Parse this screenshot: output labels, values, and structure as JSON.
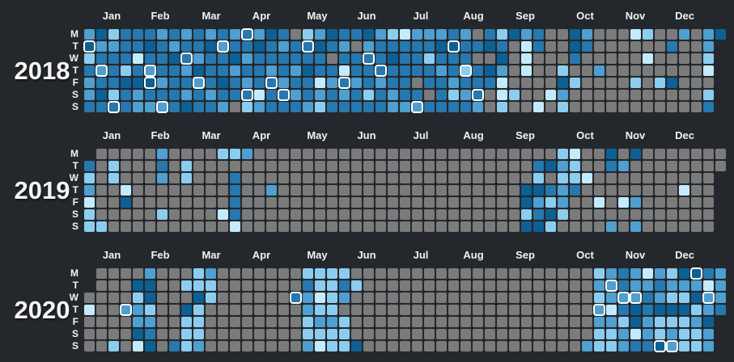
{
  "chart_data": {
    "type": "heatmap",
    "description": "Three-year calendar activity heatmap (weeks as columns, weekdays as rows). Levels: 0 = gray / no activity, 1 = lightest blue, 5 = darkest blue, '-' = day not in year.",
    "row_labels": [
      "M",
      "T",
      "W",
      "T",
      "F",
      "S",
      "S"
    ],
    "month_labels": [
      "Jan",
      "Feb",
      "Mar",
      "Apr",
      "May",
      "Jun",
      "Jul",
      "Aug",
      "Sep",
      "Oct",
      "Nov",
      "Dec"
    ],
    "colors": {
      "background": "#24282c",
      "highlight_ring": "#ffffff",
      "levels": {
        "0": "#7b7b7b",
        "1": "#c3ebfc",
        "2": "#8ccdef",
        "3": "#4f9fd0",
        "4": "#2678ae",
        "5": "#0d6094"
      }
    },
    "years": [
      {
        "label": "2018",
        "weeks": [
          "3524334",
          "5343454",
          "2344424",
          "4442544",
          "4414533",
          "4543543",
          "3444343",
          "4354444",
          "3443435",
          "4435344",
          "3544434",
          "4344543",
          "3453440",
          "4434342",
          "3544413",
          "5443444",
          "4344344",
          "0443434",
          "2445443",
          "3544132",
          "5404344",
          "4341434",
          "4044344",
          "5344424",
          "3444344",
          "2454433",
          "1444443",
          "3444043",
          "3424404",
          "3543444",
          "4544324",
          "3442434",
          "0404443",
          "4505400",
          "2453112",
          "5000020",
          "3111000",
          "4400001",
          "0000010",
          "0002532",
          "5540200",
          "3400000",
          "0003000",
          "0000000",
          "0000000",
          "1000200",
          "2010000",
          "0000200",
          "0400500",
          "3000000",
          "0000000",
          "3321024",
          "5------"
        ],
        "highlights": [
          [
            0,
            1
          ],
          [
            1,
            3
          ],
          [
            2,
            6
          ],
          [
            5,
            3
          ],
          [
            5,
            4
          ],
          [
            6,
            6
          ],
          [
            8,
            2
          ],
          [
            9,
            4
          ],
          [
            11,
            1
          ],
          [
            13,
            0
          ],
          [
            13,
            5
          ],
          [
            15,
            4
          ],
          [
            16,
            5
          ],
          [
            18,
            1
          ],
          [
            21,
            4
          ],
          [
            23,
            2
          ],
          [
            24,
            3
          ],
          [
            27,
            6
          ],
          [
            30,
            1
          ],
          [
            31,
            3
          ],
          [
            32,
            5
          ]
        ]
      },
      {
        "label": "2019",
        "weeks": [
          "-423122",
          "0000002",
          "0220000",
          "0001500",
          "0000000",
          "0000000",
          "3430020",
          "0000000",
          "0220000",
          "0000000",
          "0000000",
          "2000010",
          "2044441",
          "3000000",
          "0000000",
          "0003000",
          "0000000",
          "0000000",
          "0000000",
          "0000000",
          "0000000",
          "0000000",
          "0000000",
          "0000000",
          "0000000",
          "0000000",
          "0000000",
          "0000000",
          "0000000",
          "0000000",
          "0000000",
          "0000000",
          "0000000",
          "0000000",
          "0000000",
          "0000000",
          "0005525",
          "0425345",
          "0504252",
          "2323320",
          "1224000",
          "0010000",
          "0000100",
          "5400003",
          "0300100",
          "5000303",
          "0000000",
          "0000000",
          "0000000",
          "0001000",
          "0000000",
          "0000000",
          "00-----"
        ],
        "highlights": []
      },
      {
        "label": "2020",
        "weeks": [
          "--01000",
          "0000000",
          "0000002",
          "0003000",
          "0523351",
          "3552345",
          "0000000",
          "0000004",
          "0205222",
          "2252223",
          "3220000",
          "0000000",
          "0000000",
          "0000000",
          "0000000",
          "0000000",
          "0000000",
          "0040000",
          "2433223",
          "2212321",
          "2222322",
          "2430222",
          "0200005",
          "0000000",
          "0000000",
          "0000000",
          "0000000",
          "0000000",
          "0000000",
          "0000000",
          "0000000",
          "0000000",
          "0000000",
          "0000000",
          "0000000",
          "0000000",
          "0000000",
          "0000000",
          "0000000",
          "0000000",
          "0000000",
          "0000003",
          "2323322",
          "3331322",
          "4434233",
          "3335514",
          "1344334",
          "3435225",
          "2325233",
          "5325222",
          "5352322",
          "4133533",
          "3334---"
        ],
        "highlights": [
          [
            3,
            3
          ],
          [
            17,
            2
          ],
          [
            42,
            3
          ],
          [
            43,
            1
          ],
          [
            44,
            2
          ],
          [
            45,
            2
          ],
          [
            47,
            6
          ],
          [
            48,
            6
          ],
          [
            50,
            0
          ],
          [
            51,
            2
          ]
        ]
      }
    ]
  }
}
